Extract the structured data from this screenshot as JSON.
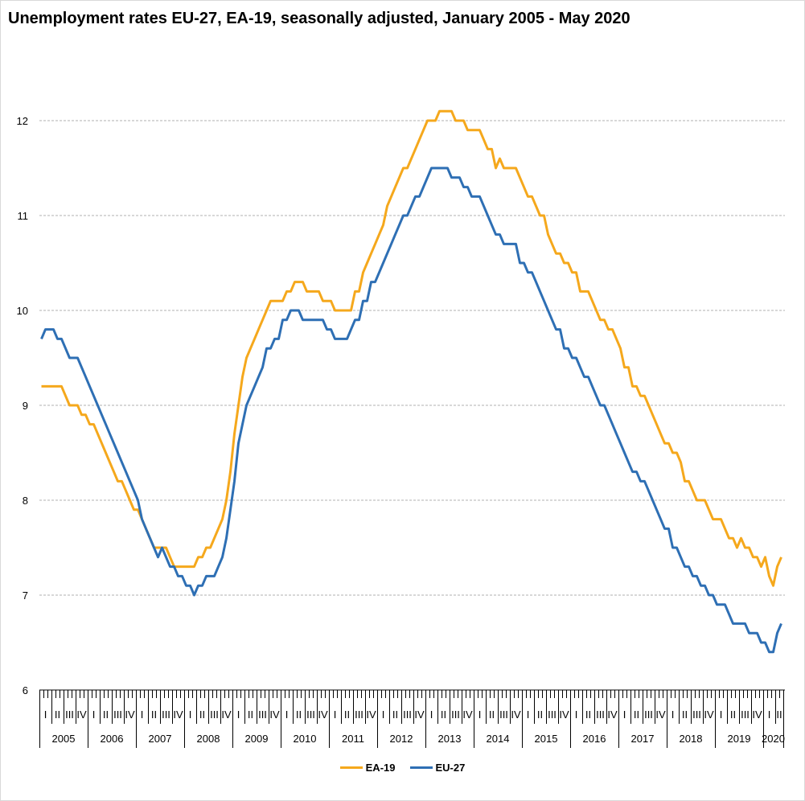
{
  "chart_data": {
    "type": "line",
    "title": "Unemployment rates EU-27, EA-19, seasonally adjusted, January 2005 - May 2020",
    "xlabel": "",
    "ylabel": "",
    "ylim": [
      6,
      12.5
    ],
    "yticks": [
      6,
      7,
      8,
      9,
      10,
      11,
      12
    ],
    "grid": true,
    "legend_position": "bottom",
    "x_start": "2005-01",
    "x_end": "2020-05",
    "x_frequency": "monthly",
    "years": [
      "2005",
      "2006",
      "2007",
      "2008",
      "2009",
      "2010",
      "2011",
      "2012",
      "2013",
      "2014",
      "2015",
      "2016",
      "2017",
      "2018",
      "2019",
      "2020"
    ],
    "quarter_labels": [
      "I",
      "II",
      "III",
      "IV"
    ],
    "series": [
      {
        "name": "EA-19",
        "color": "#f5a81c",
        "values": [
          9.2,
          9.2,
          9.2,
          9.2,
          9.2,
          9.2,
          9.1,
          9.0,
          9.0,
          9.0,
          8.9,
          8.9,
          8.8,
          8.8,
          8.7,
          8.6,
          8.5,
          8.4,
          8.3,
          8.2,
          8.2,
          8.1,
          8.0,
          7.9,
          7.9,
          7.8,
          7.7,
          7.6,
          7.5,
          7.5,
          7.5,
          7.5,
          7.4,
          7.3,
          7.3,
          7.3,
          7.3,
          7.3,
          7.3,
          7.4,
          7.4,
          7.5,
          7.5,
          7.6,
          7.7,
          7.8,
          8.0,
          8.3,
          8.7,
          9.0,
          9.3,
          9.5,
          9.6,
          9.7,
          9.8,
          9.9,
          10.0,
          10.1,
          10.1,
          10.1,
          10.1,
          10.2,
          10.2,
          10.3,
          10.3,
          10.3,
          10.2,
          10.2,
          10.2,
          10.2,
          10.1,
          10.1,
          10.1,
          10.0,
          10.0,
          10.0,
          10.0,
          10.0,
          10.2,
          10.2,
          10.4,
          10.5,
          10.6,
          10.7,
          10.8,
          10.9,
          11.1,
          11.2,
          11.3,
          11.4,
          11.5,
          11.5,
          11.6,
          11.7,
          11.8,
          11.9,
          12.0,
          12.0,
          12.0,
          12.1,
          12.1,
          12.1,
          12.1,
          12.0,
          12.0,
          12.0,
          11.9,
          11.9,
          11.9,
          11.9,
          11.8,
          11.7,
          11.7,
          11.5,
          11.6,
          11.5,
          11.5,
          11.5,
          11.5,
          11.4,
          11.3,
          11.2,
          11.2,
          11.1,
          11.0,
          11.0,
          10.8,
          10.7,
          10.6,
          10.6,
          10.5,
          10.5,
          10.4,
          10.4,
          10.2,
          10.2,
          10.2,
          10.1,
          10.0,
          9.9,
          9.9,
          9.8,
          9.8,
          9.7,
          9.6,
          9.4,
          9.4,
          9.2,
          9.2,
          9.1,
          9.1,
          9.0,
          8.9,
          8.8,
          8.7,
          8.6,
          8.6,
          8.5,
          8.5,
          8.4,
          8.2,
          8.2,
          8.1,
          8.0,
          8.0,
          8.0,
          7.9,
          7.8,
          7.8,
          7.8,
          7.7,
          7.6,
          7.6,
          7.5,
          7.6,
          7.5,
          7.5,
          7.4,
          7.4,
          7.3,
          7.4,
          7.2,
          7.1,
          7.3,
          7.4
        ]
      },
      {
        "name": "EU-27",
        "color": "#2e6fb4",
        "values": [
          9.7,
          9.8,
          9.8,
          9.8,
          9.7,
          9.7,
          9.6,
          9.5,
          9.5,
          9.5,
          9.4,
          9.3,
          9.2,
          9.1,
          9.0,
          8.9,
          8.8,
          8.7,
          8.6,
          8.5,
          8.4,
          8.3,
          8.2,
          8.1,
          8.0,
          7.8,
          7.7,
          7.6,
          7.5,
          7.4,
          7.5,
          7.4,
          7.3,
          7.3,
          7.2,
          7.2,
          7.1,
          7.1,
          7.0,
          7.1,
          7.1,
          7.2,
          7.2,
          7.2,
          7.3,
          7.4,
          7.6,
          7.9,
          8.2,
          8.6,
          8.8,
          9.0,
          9.1,
          9.2,
          9.3,
          9.4,
          9.6,
          9.6,
          9.7,
          9.7,
          9.9,
          9.9,
          10.0,
          10.0,
          10.0,
          9.9,
          9.9,
          9.9,
          9.9,
          9.9,
          9.9,
          9.8,
          9.8,
          9.7,
          9.7,
          9.7,
          9.7,
          9.8,
          9.9,
          9.9,
          10.1,
          10.1,
          10.3,
          10.3,
          10.4,
          10.5,
          10.6,
          10.7,
          10.8,
          10.9,
          11.0,
          11.0,
          11.1,
          11.2,
          11.2,
          11.3,
          11.4,
          11.5,
          11.5,
          11.5,
          11.5,
          11.5,
          11.4,
          11.4,
          11.4,
          11.3,
          11.3,
          11.2,
          11.2,
          11.2,
          11.1,
          11.0,
          10.9,
          10.8,
          10.8,
          10.7,
          10.7,
          10.7,
          10.7,
          10.5,
          10.5,
          10.4,
          10.4,
          10.3,
          10.2,
          10.1,
          10.0,
          9.9,
          9.8,
          9.8,
          9.6,
          9.6,
          9.5,
          9.5,
          9.4,
          9.3,
          9.3,
          9.2,
          9.1,
          9.0,
          9.0,
          8.9,
          8.8,
          8.7,
          8.6,
          8.5,
          8.4,
          8.3,
          8.3,
          8.2,
          8.2,
          8.1,
          8.0,
          7.9,
          7.8,
          7.7,
          7.7,
          7.5,
          7.5,
          7.4,
          7.3,
          7.3,
          7.2,
          7.2,
          7.1,
          7.1,
          7.0,
          7.0,
          6.9,
          6.9,
          6.9,
          6.8,
          6.7,
          6.7,
          6.7,
          6.7,
          6.6,
          6.6,
          6.6,
          6.5,
          6.5,
          6.4,
          6.4,
          6.6,
          6.7
        ]
      }
    ]
  }
}
